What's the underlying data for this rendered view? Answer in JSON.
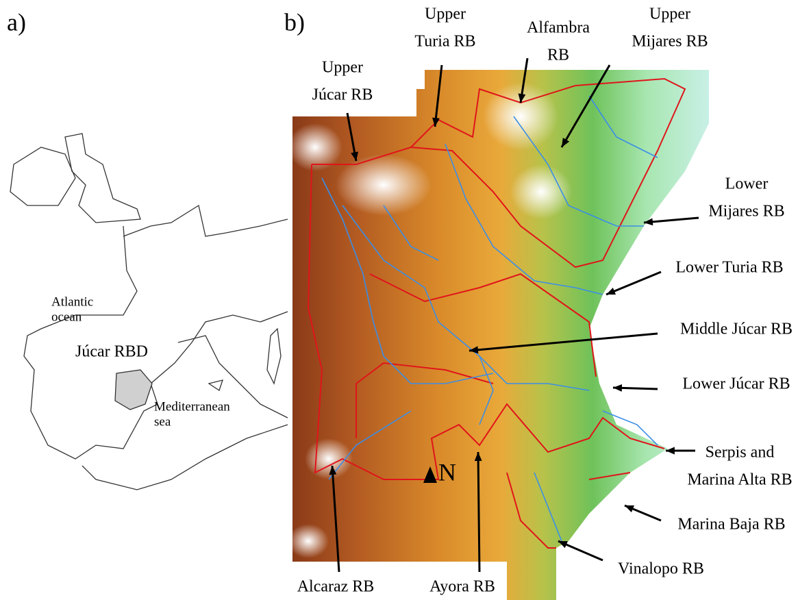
{
  "panel_a": {
    "label": "a)",
    "places": [
      {
        "lines": [
          "Atlantic",
          "ocean"
        ]
      },
      {
        "lines": [
          "Júcar RBD"
        ]
      },
      {
        "lines": [
          "Mediterranean",
          "sea"
        ]
      }
    ]
  },
  "panel_b": {
    "label": "b)",
    "north": "N",
    "basins": [
      {
        "lines": [
          "Upper",
          "Turia RB"
        ]
      },
      {
        "lines": [
          "Alfambra",
          "RB"
        ]
      },
      {
        "lines": [
          "Upper",
          "Mijares RB"
        ]
      },
      {
        "lines": [
          "Upper",
          "Júcar RB"
        ]
      },
      {
        "lines": [
          "Lower",
          "Mijares RB"
        ]
      },
      {
        "lines": [
          "Lower Turia RB"
        ]
      },
      {
        "lines": [
          "Middle Júcar RB"
        ]
      },
      {
        "lines": [
          "Lower Júcar RB"
        ]
      },
      {
        "lines": [
          "Serpis and",
          "Marina Alta RB"
        ]
      },
      {
        "lines": [
          "Marina Baja RB"
        ]
      },
      {
        "lines": [
          "Vinalopo RB"
        ]
      },
      {
        "lines": [
          "Alcaraz RB"
        ]
      },
      {
        "lines": [
          "Ayora RB"
        ]
      }
    ]
  }
}
